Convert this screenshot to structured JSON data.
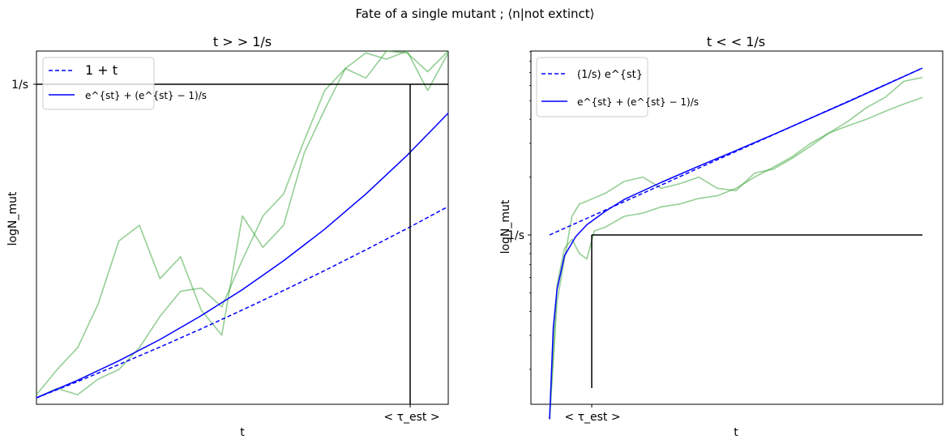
{
  "figure": {
    "suptitle": "Fate of a single mutant ; ⟨n|not extinct⟩"
  },
  "chart_data": [
    {
      "type": "line",
      "title": "t > > 1/s",
      "xlabel": "t",
      "ylabel": "logN_mut",
      "yscale": "linear",
      "x_ticklabels": [
        "< τ_est >"
      ],
      "y_ticklabels": [
        "1/s"
      ],
      "legend_position": "upper-left",
      "legend": [
        "1 + t",
        "e^{st} + (e^{st} − 1)/s"
      ],
      "annotations": {
        "horizontal_line": "1/s",
        "vertical_line": "< τ_est >"
      },
      "series": [
        {
          "name": "1 + t",
          "style": "dashed",
          "color": "#0000ff",
          "x": [
            0,
            0.1,
            0.2,
            0.3,
            0.4,
            0.5,
            0.6,
            0.7,
            0.8,
            0.9,
            1.0
          ],
          "y": [
            0.0,
            0.052,
            0.106,
            0.162,
            0.22,
            0.28,
            0.342,
            0.406,
            0.472,
            0.54,
            0.61
          ]
        },
        {
          "name": "e^{st} + (e^{st} − 1)/s",
          "style": "solid",
          "color": "#0000ff",
          "x": [
            0,
            0.1,
            0.2,
            0.3,
            0.4,
            0.5,
            0.6,
            0.7,
            0.8,
            0.9,
            1.0
          ],
          "y": [
            0.0,
            0.056,
            0.118,
            0.186,
            0.262,
            0.345,
            0.437,
            0.538,
            0.65,
            0.773,
            0.908
          ]
        },
        {
          "name": "",
          "style": "solid",
          "color": "#2ca02c",
          "x": [
            0,
            0.05,
            0.1,
            0.15,
            0.2,
            0.25,
            0.3,
            0.35,
            0.4,
            0.45,
            0.5,
            0.55,
            0.6,
            0.65,
            0.7,
            0.75,
            0.8,
            0.85,
            0.9,
            0.95,
            1.0
          ],
          "y": [
            0.01,
            0.09,
            0.16,
            0.3,
            0.5,
            0.55,
            0.38,
            0.45,
            0.28,
            0.2,
            0.58,
            0.48,
            0.55,
            0.78,
            0.92,
            1.05,
            1.1,
            1.08,
            1.15,
            0.98,
            1.1
          ]
        },
        {
          "name": "",
          "style": "solid",
          "color": "#2ca02c",
          "x": [
            0,
            0.05,
            0.1,
            0.15,
            0.2,
            0.25,
            0.3,
            0.35,
            0.4,
            0.45,
            0.5,
            0.55,
            0.6,
            0.65,
            0.7,
            0.75,
            0.8,
            0.85,
            0.9,
            0.95,
            1.0
          ],
          "y": [
            0.0,
            0.03,
            0.01,
            0.06,
            0.09,
            0.16,
            0.26,
            0.34,
            0.35,
            0.29,
            0.44,
            0.58,
            0.65,
            0.82,
            0.98,
            1.05,
            1.02,
            1.12,
            1.1,
            1.04,
            1.12
          ]
        }
      ]
    },
    {
      "type": "line",
      "title": "t < < 1/s",
      "xlabel": "t",
      "ylabel": "logN_mut",
      "yscale": "log",
      "x_ticklabels": [
        "< τ_est >"
      ],
      "y_ticklabels": [
        "1/s"
      ],
      "legend_position": "upper-left",
      "legend": [
        "(1/s) e^{st}",
        "e^{st} + (e^{st} − 1)/s"
      ],
      "annotations": {
        "horizontal_line": "1/s",
        "vertical_line": "< τ_est >"
      },
      "series": [
        {
          "name": "(1/s) e^{st}",
          "style": "dashed",
          "color": "#0000ff",
          "x": [
            0,
            0.1,
            0.2,
            0.3,
            0.4,
            0.5,
            0.6,
            0.7,
            0.8,
            0.9,
            1.0
          ],
          "y": [
            1.0,
            1.22,
            1.49,
            1.82,
            2.23,
            2.72,
            3.32,
            4.06,
            4.95,
            6.05,
            7.39
          ]
        },
        {
          "name": "e^{st} + (e^{st} − 1)/s",
          "style": "solid",
          "color": "#0000ff",
          "x": [
            0.0,
            0.01,
            0.02,
            0.04,
            0.07,
            0.1,
            0.15,
            0.2,
            0.3,
            0.4,
            0.5,
            0.6,
            0.7,
            0.8,
            0.9,
            1.0
          ],
          "y": [
            0.11,
            0.33,
            0.52,
            0.78,
            0.98,
            1.13,
            1.33,
            1.53,
            1.88,
            2.28,
            2.75,
            3.33,
            4.05,
            4.93,
            6.03,
            7.39
          ]
        },
        {
          "name": "",
          "style": "solid",
          "color": "#2ca02c",
          "x": [
            0.0,
            0.02,
            0.04,
            0.06,
            0.08,
            0.1,
            0.15,
            0.2,
            0.25,
            0.3,
            0.35,
            0.4,
            0.45,
            0.5,
            0.55,
            0.6,
            0.65,
            0.7,
            0.75,
            0.8,
            0.85,
            0.9,
            0.95,
            1.0
          ],
          "y": [
            0.11,
            0.45,
            0.75,
            1.25,
            1.45,
            1.5,
            1.65,
            1.9,
            2.0,
            1.75,
            1.85,
            2.0,
            1.75,
            1.7,
            2.1,
            2.2,
            2.5,
            2.9,
            3.4,
            3.9,
            4.6,
            5.2,
            6.3,
            6.6
          ]
        },
        {
          "name": "",
          "style": "solid",
          "color": "#2ca02c",
          "x": [
            0.0,
            0.02,
            0.04,
            0.06,
            0.08,
            0.1,
            0.12,
            0.15,
            0.2,
            0.25,
            0.3,
            0.35,
            0.4,
            0.45,
            0.5,
            0.55,
            0.6,
            0.65,
            0.7,
            0.75,
            0.8,
            0.85,
            0.9,
            0.95,
            1.0
          ],
          "y": [
            0.11,
            0.55,
            0.85,
            0.95,
            0.8,
            0.75,
            1.05,
            1.1,
            1.25,
            1.3,
            1.4,
            1.45,
            1.55,
            1.6,
            1.75,
            2.0,
            2.25,
            2.55,
            3.0,
            3.4,
            3.7,
            4.0,
            4.4,
            4.8,
            5.2
          ]
        }
      ]
    }
  ]
}
